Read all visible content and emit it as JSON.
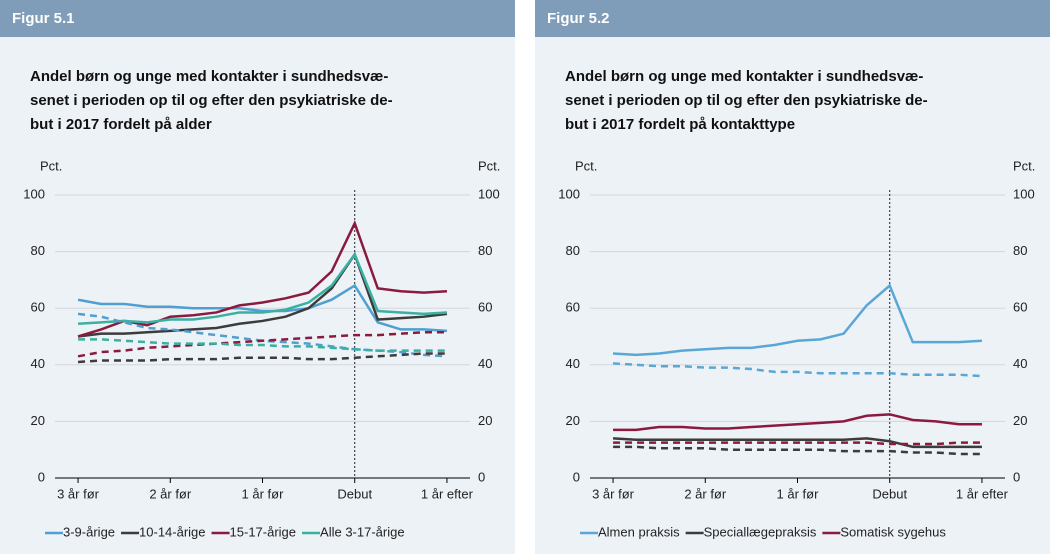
{
  "chart_data": [
    {
      "type": "line",
      "figure_label": "Figur 5.1",
      "title": [
        "Andel børn og unge med kontakter i sundhedsvæ-",
        "senet i perioden op til og efter den psykiatriske de-",
        "but i 2017 fordelt på alder"
      ],
      "y_label": "Pct.",
      "y2_label": "Pct.",
      "x": [
        -12,
        -11,
        -10,
        -9,
        -8,
        -7,
        -6,
        -5,
        -4,
        -3,
        -2,
        -1,
        0,
        1,
        2,
        3,
        4
      ],
      "xlim": [
        -13,
        5
      ],
      "xticks": [
        {
          "value": -12,
          "label": "3 år før"
        },
        {
          "value": -8,
          "label": "2 år før"
        },
        {
          "value": -4,
          "label": "1 år før"
        },
        {
          "value": 0,
          "label": "Debut"
        },
        {
          "value": 4,
          "label": "1 år efter"
        }
      ],
      "ylim": [
        0,
        100
      ],
      "yticks": [
        0,
        20,
        40,
        60,
        80,
        100
      ],
      "y2lim": [
        0,
        100
      ],
      "y2ticks": [
        0,
        20,
        40,
        60,
        80,
        100
      ],
      "grid": true,
      "vline": 0,
      "series": [
        {
          "name": "3-9-årige",
          "color": "#4f9fd1",
          "values": [
            63,
            61.5,
            61.5,
            60.5,
            60.5,
            60,
            60,
            60,
            59,
            59,
            60,
            63,
            68,
            55,
            52.5,
            52.5,
            52
          ]
        },
        {
          "name": "10-14-årige",
          "color": "#3c3c3c",
          "values": [
            50,
            51,
            51,
            51.5,
            52,
            52.5,
            53,
            54.5,
            55.5,
            57,
            60,
            67,
            79,
            56,
            56.5,
            57,
            58
          ]
        },
        {
          "name": "15-17-årige",
          "color": "#8b1a3f",
          "values": [
            50,
            52.5,
            55.5,
            54,
            57,
            57.5,
            58.5,
            61,
            62,
            63.5,
            65.5,
            73,
            90,
            67,
            66,
            65.5,
            66
          ]
        },
        {
          "name": "Alle 3-17-årige",
          "color": "#3ab0a0",
          "values": [
            54.5,
            55,
            55.5,
            55,
            56,
            56,
            57,
            58.5,
            58.5,
            59.5,
            62,
            68,
            79,
            59,
            58.5,
            58,
            58.5
          ]
        },
        {
          "color": "#4f9fd1",
          "dashed": true,
          "values": [
            58,
            57,
            55,
            53,
            52.5,
            51.5,
            50.5,
            49.5,
            48.5,
            48,
            47.5,
            46.5,
            45.5,
            45,
            44.5,
            43.5,
            43
          ]
        },
        {
          "color": "#3c3c3c",
          "dashed": true,
          "values": [
            41,
            41.5,
            41.5,
            41.5,
            42,
            42,
            42,
            42.5,
            42.5,
            42.5,
            42,
            42,
            42.5,
            43,
            43.5,
            44,
            44
          ]
        },
        {
          "color": "#8b1a3f",
          "dashed": true,
          "values": [
            43,
            44.5,
            45,
            46,
            46.5,
            47,
            47.5,
            48,
            48.5,
            49,
            49.5,
            50,
            50.5,
            50.5,
            51,
            51.5,
            51.5
          ]
        },
        {
          "color": "#3ab0a0",
          "dashed": true,
          "values": [
            49,
            49,
            48.5,
            48,
            47.5,
            47.5,
            47.5,
            47,
            47,
            46.5,
            46.5,
            46,
            45.5,
            45,
            45,
            45,
            45
          ]
        }
      ]
    },
    {
      "type": "line",
      "figure_label": "Figur 5.2",
      "title": [
        "Andel børn og unge med kontakter i sundhedsvæ-",
        "senet i perioden op til og efter den psykiatriske de-",
        "but i 2017 fordelt på kontakttype"
      ],
      "y_label": "Pct.",
      "y2_label": "Pct.",
      "x": [
        -12,
        -11,
        -10,
        -9,
        -8,
        -7,
        -6,
        -5,
        -4,
        -3,
        -2,
        -1,
        0,
        1,
        2,
        3,
        4
      ],
      "xlim": [
        -13,
        5
      ],
      "xticks": [
        {
          "value": -12,
          "label": "3 år før"
        },
        {
          "value": -8,
          "label": "2 år før"
        },
        {
          "value": -4,
          "label": "1 år før"
        },
        {
          "value": 0,
          "label": "Debut"
        },
        {
          "value": 4,
          "label": "1 år efter"
        }
      ],
      "ylim": [
        0,
        100
      ],
      "yticks": [
        0,
        20,
        40,
        60,
        80,
        100
      ],
      "y2lim": [
        0,
        100
      ],
      "y2ticks": [
        0,
        20,
        40,
        60,
        80,
        100
      ],
      "grid": true,
      "vline": 0,
      "series": [
        {
          "name": "Almen praksis",
          "color": "#5aa7d6",
          "values": [
            44,
            43.5,
            44,
            45,
            45.5,
            46,
            46,
            47,
            48.5,
            49,
            51,
            61,
            68,
            48,
            48,
            48,
            48.5
          ]
        },
        {
          "name": "Speciallægepraksis",
          "color": "#3c3c3c",
          "values": [
            14,
            13.5,
            13.5,
            13.5,
            13.5,
            13.5,
            13.5,
            13.5,
            13.5,
            13.5,
            13.5,
            14,
            13,
            11,
            11,
            11,
            11
          ]
        },
        {
          "name": "Somatisk sygehus",
          "color": "#8b1a3f",
          "values": [
            17,
            17,
            18,
            18,
            17.5,
            17.5,
            18,
            18.5,
            19,
            19.5,
            20,
            22,
            22.5,
            20.5,
            20,
            19,
            19
          ]
        },
        {
          "color": "#5aa7d6",
          "dashed": true,
          "values": [
            40.5,
            40,
            39.5,
            39.5,
            39,
            39,
            38.5,
            37.5,
            37.5,
            37,
            37,
            37,
            37,
            36.5,
            36.5,
            36.5,
            36
          ]
        },
        {
          "color": "#3c3c3c",
          "dashed": true,
          "values": [
            11,
            11,
            10.5,
            10.5,
            10.5,
            10,
            10,
            10,
            10,
            10,
            9.5,
            9.5,
            9.5,
            9,
            9,
            8.5,
            8.5
          ]
        },
        {
          "color": "#8b1a3f",
          "dashed": true,
          "values": [
            12.5,
            12.5,
            12.5,
            12.5,
            12.5,
            12.5,
            12.5,
            12.5,
            12.5,
            12.5,
            12.5,
            12.5,
            12,
            12,
            12,
            12.5,
            12.5
          ]
        }
      ]
    }
  ]
}
